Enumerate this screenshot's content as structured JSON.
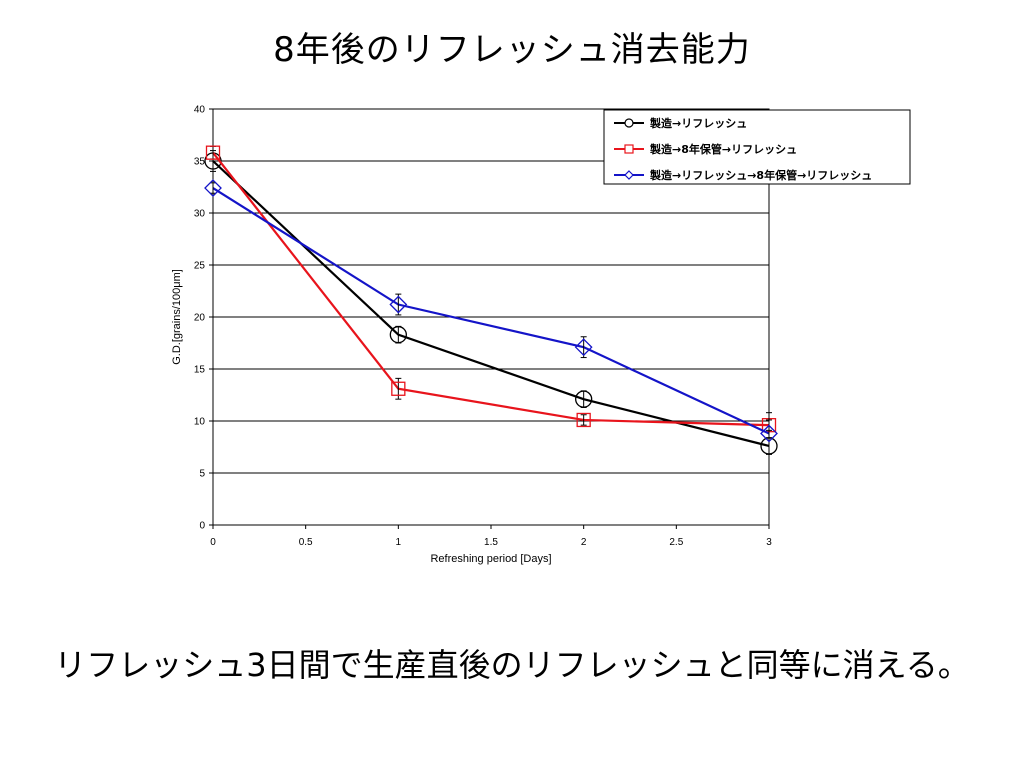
{
  "slide": {
    "title": "8年後のリフレッシュ消去能力",
    "caption": "リフレッシュ3日間で生産直後のリフレッシュと同等に消える。"
  },
  "chart_data": {
    "type": "line",
    "xlabel": "Refreshing period [Days]",
    "ylabel": "G.D.[grains/100μm]",
    "xlim": [
      0,
      3
    ],
    "ylim": [
      0,
      40
    ],
    "xticks": [
      "0",
      "0.5",
      "1",
      "1.5",
      "2",
      "2.5",
      "3"
    ],
    "yticks": [
      "0",
      "5",
      "10",
      "15",
      "20",
      "25",
      "30",
      "35",
      "40"
    ],
    "grid": "horizontal",
    "legend_position": "top-right",
    "series": [
      {
        "name": "製造→リフレッシュ",
        "color": "#000000",
        "marker": "circle",
        "points": [
          {
            "x": 0,
            "y": 35.0,
            "err": 1.0
          },
          {
            "x": 1,
            "y": 18.3,
            "err": 0.8
          },
          {
            "x": 2,
            "y": 12.1,
            "err": 0.8
          },
          {
            "x": 3,
            "y": 7.6,
            "err": 0.8
          }
        ]
      },
      {
        "name": "製造→8年保管→リフレッシュ",
        "color": "#e8141c",
        "marker": "square",
        "points": [
          {
            "x": 0,
            "y": 35.8,
            "err": 0.6
          },
          {
            "x": 1,
            "y": 13.1,
            "err": 1.0
          },
          {
            "x": 2,
            "y": 10.1,
            "err": 0.5
          },
          {
            "x": 3,
            "y": 9.6,
            "err": 0.5
          }
        ]
      },
      {
        "name": "製造→リフレッシュ→8年保管→リフレッシュ",
        "color": "#1414c8",
        "marker": "diamond",
        "points": [
          {
            "x": 0,
            "y": 32.4,
            "err": 0.5
          },
          {
            "x": 1,
            "y": 21.2,
            "err": 1.0
          },
          {
            "x": 2,
            "y": 17.1,
            "err": 1.0
          },
          {
            "x": 3,
            "y": 8.8,
            "err": 2.0
          }
        ]
      }
    ]
  }
}
